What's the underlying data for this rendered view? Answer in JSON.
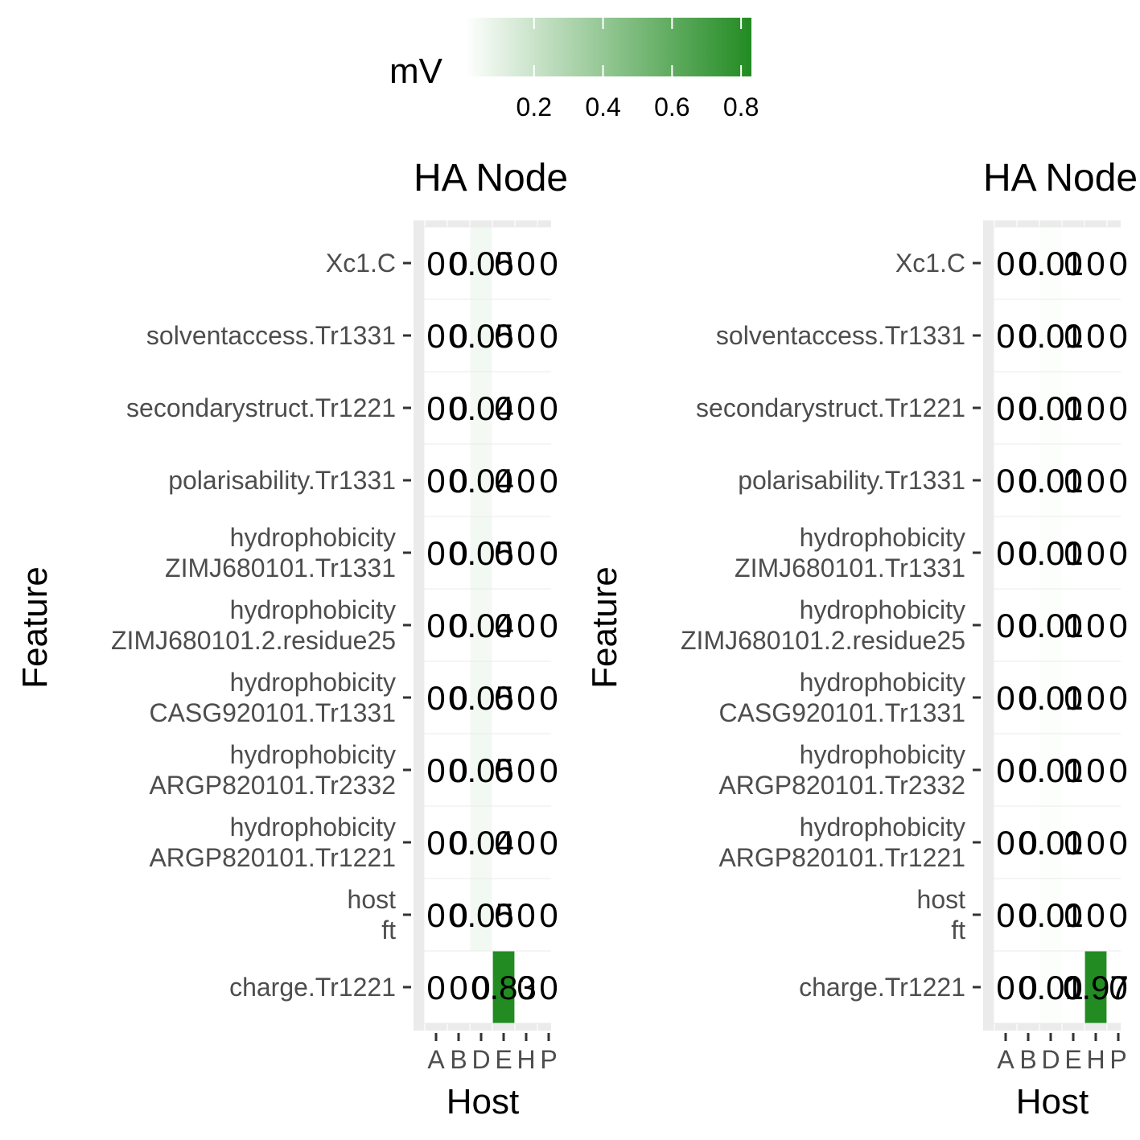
{
  "colors": {
    "low": "#ffffff",
    "high": "#228b22",
    "panel_bg": "#ebebeb",
    "grid": "#ffffff"
  },
  "legend": {
    "title": "mV",
    "ticks": [
      "0.2",
      "0.4",
      "0.6",
      "0.8"
    ],
    "tick_values": [
      0.2,
      0.4,
      0.6,
      0.8
    ],
    "range": [
      0,
      0.83
    ]
  },
  "chart_data": [
    {
      "type": "heatmap",
      "title": "HA Node",
      "xlabel": "Host",
      "ylabel": "Feature",
      "x": [
        "A",
        "B",
        "D",
        "E",
        "H",
        "P"
      ],
      "y": [
        "Xc1.C",
        "solventaccess.Tr1331",
        "secondarystruct.Tr1221",
        "polarisability.Tr1331",
        "hydrophobicity\nZIMJ680101.Tr1331",
        "hydrophobicity\nZIMJ680101.2.residue25",
        "hydrophobicity\nCASG920101.Tr1331",
        "hydrophobicity\nARGP820101.Tr2332",
        "hydrophobicity\nARGP820101.Tr1221",
        "host\nft",
        "charge.Tr1221"
      ],
      "values": [
        [
          0,
          0,
          0.05,
          0,
          0,
          0
        ],
        [
          0,
          0,
          0.05,
          0,
          0,
          0
        ],
        [
          0,
          0,
          0.04,
          0,
          0,
          0
        ],
        [
          0,
          0,
          0.04,
          0,
          0,
          0
        ],
        [
          0,
          0,
          0.05,
          0,
          0,
          0
        ],
        [
          0,
          0,
          0.04,
          0,
          0,
          0
        ],
        [
          0,
          0,
          0.05,
          0,
          0,
          0
        ],
        [
          0,
          0,
          0.05,
          0,
          0,
          0
        ],
        [
          0,
          0,
          0.04,
          0,
          0,
          0
        ],
        [
          0,
          0,
          0.05,
          0,
          0,
          0
        ],
        [
          0,
          0,
          0,
          0.83,
          0,
          0
        ]
      ],
      "labels": [
        [
          "0",
          "0",
          "0.05",
          "0",
          "0",
          "0"
        ],
        [
          "0",
          "0",
          "0.05",
          "0",
          "0",
          "0"
        ],
        [
          "0",
          "0",
          "0.04",
          "0",
          "0",
          "0"
        ],
        [
          "0",
          "0",
          "0.04",
          "0",
          "0",
          "0"
        ],
        [
          "0",
          "0",
          "0.05",
          "0",
          "0",
          "0"
        ],
        [
          "0",
          "0",
          "0.04",
          "0",
          "0",
          "0"
        ],
        [
          "0",
          "0",
          "0.05",
          "0",
          "0",
          "0"
        ],
        [
          "0",
          "0",
          "0.05",
          "0",
          "0",
          "0"
        ],
        [
          "0",
          "0",
          "0.04",
          "0",
          "0",
          "0"
        ],
        [
          "0",
          "0",
          "0.05",
          "0",
          "0",
          "0"
        ],
        [
          "0",
          "0",
          "0",
          "0.83",
          "0",
          "0"
        ]
      ]
    },
    {
      "type": "heatmap",
      "title": "HA Node",
      "xlabel": "Host",
      "ylabel": "Feature",
      "x": [
        "A",
        "B",
        "D",
        "E",
        "H",
        "P"
      ],
      "y": [
        "Xc1.C",
        "solventaccess.Tr1331",
        "secondarystruct.Tr1221",
        "polarisability.Tr1331",
        "hydrophobicity\nZIMJ680101.Tr1331",
        "hydrophobicity\nZIMJ680101.2.residue25",
        "hydrophobicity\nCASG920101.Tr1331",
        "hydrophobicity\nARGP820101.Tr2332",
        "hydrophobicity\nARGP820101.Tr1221",
        "host\nft",
        "charge.Tr1221"
      ],
      "values": [
        [
          0,
          0,
          0.01,
          0,
          0,
          0
        ],
        [
          0,
          0,
          0.01,
          0,
          0,
          0
        ],
        [
          0,
          0,
          0.01,
          0,
          0,
          0
        ],
        [
          0,
          0,
          0.01,
          0,
          0,
          0
        ],
        [
          0,
          0,
          0.01,
          0,
          0,
          0
        ],
        [
          0,
          0,
          0.01,
          0,
          0,
          0
        ],
        [
          0,
          0,
          0.01,
          0,
          0,
          0
        ],
        [
          0,
          0,
          0.01,
          0,
          0,
          0
        ],
        [
          0,
          0,
          0.01,
          0,
          0,
          0
        ],
        [
          0,
          0,
          0.01,
          0,
          0,
          0
        ],
        [
          0,
          0,
          0.01,
          0,
          0.97,
          0
        ]
      ],
      "labels": [
        [
          "0",
          "0",
          "0.01",
          "0",
          "0",
          "0"
        ],
        [
          "0",
          "0",
          "0.01",
          "0",
          "0",
          "0"
        ],
        [
          "0",
          "0",
          "0.01",
          "0",
          "0",
          "0"
        ],
        [
          "0",
          "0",
          "0.01",
          "0",
          "0",
          "0"
        ],
        [
          "0",
          "0",
          "0.01",
          "0",
          "0",
          "0"
        ],
        [
          "0",
          "0",
          "0.01",
          "0",
          "0",
          "0"
        ],
        [
          "0",
          "0",
          "0.01",
          "0",
          "0",
          "0"
        ],
        [
          "0",
          "0",
          "0.01",
          "0",
          "0",
          "0"
        ],
        [
          "0",
          "0",
          "0.01",
          "0",
          "0",
          "0"
        ],
        [
          "0",
          "0",
          "0.01",
          "0",
          "0",
          "0"
        ],
        [
          "0",
          "0",
          "0.01",
          "0",
          "0.97",
          "0"
        ]
      ]
    }
  ]
}
